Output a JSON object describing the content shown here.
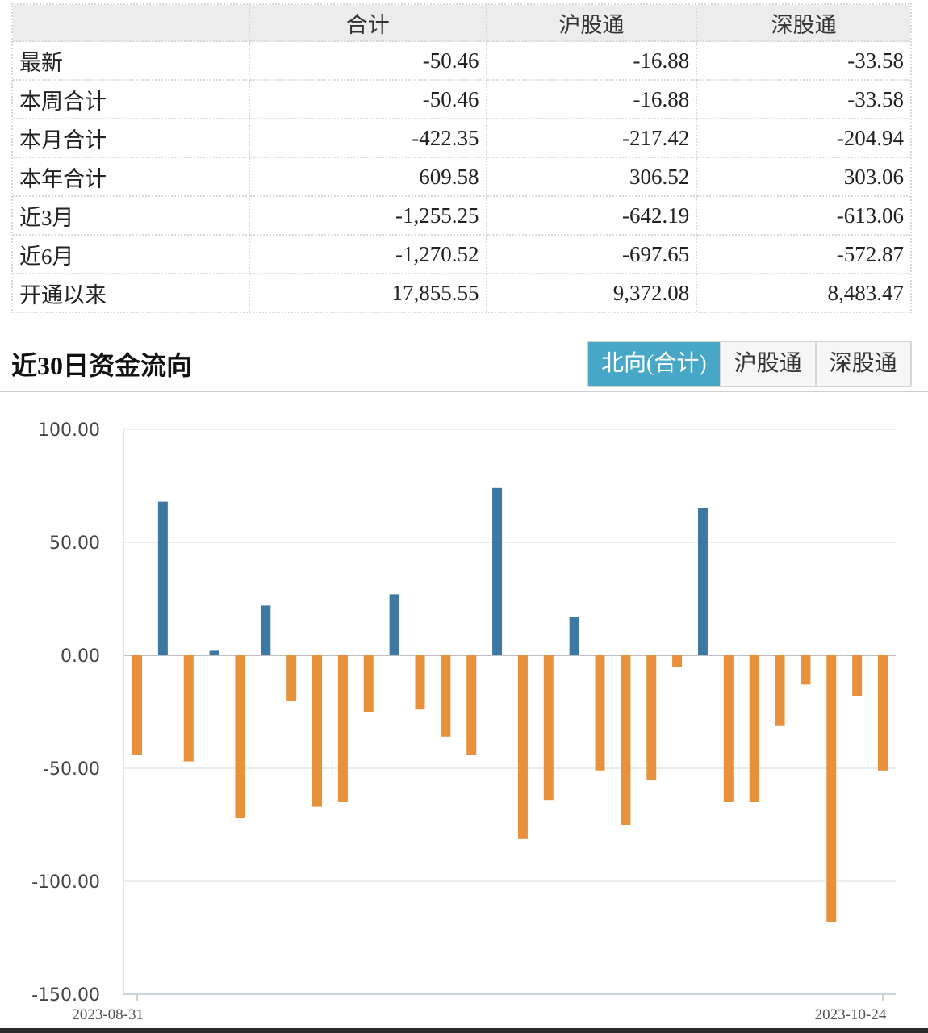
{
  "table": {
    "headers": [
      "",
      "合计",
      "沪股通",
      "深股通"
    ],
    "rows": [
      {
        "label": "最新",
        "total": "-50.46",
        "sh": "-16.88",
        "sz": "-33.58"
      },
      {
        "label": "本周合计",
        "total": "-50.46",
        "sh": "-16.88",
        "sz": "-33.58"
      },
      {
        "label": "本月合计",
        "total": "-422.35",
        "sh": "-217.42",
        "sz": "-204.94"
      },
      {
        "label": "本年合计",
        "total": "609.58",
        "sh": "306.52",
        "sz": "303.06"
      },
      {
        "label": "近3月",
        "total": "-1,255.25",
        "sh": "-642.19",
        "sz": "-613.06"
      },
      {
        "label": "近6月",
        "total": "-1,270.52",
        "sh": "-697.65",
        "sz": "-572.87"
      },
      {
        "label": "开通以来",
        "total": "17,855.55",
        "sh": "9,372.08",
        "sz": "8,483.47"
      }
    ]
  },
  "section": {
    "title": "近30日资金流向",
    "tabs": [
      {
        "label": "北向(合计)",
        "active": true
      },
      {
        "label": "沪股通",
        "active": false
      },
      {
        "label": "深股通",
        "active": false
      }
    ]
  },
  "colors": {
    "positive": "#3d78a3",
    "negative": "#e8913a",
    "tab_active": "#48a7c6"
  },
  "chart_data": {
    "type": "bar",
    "x_tick_labels": [
      "2023-08-31",
      "2023-10-24"
    ],
    "ylim": [
      -150,
      100
    ],
    "y_ticks": [
      "100.00",
      "50.00",
      "0.00",
      "-50.00",
      "-100.00",
      "-150.00"
    ],
    "y_tick_values": [
      100,
      50,
      0,
      -50,
      -100,
      -150
    ],
    "values": [
      -44,
      68,
      -47,
      2,
      -72,
      22,
      -20,
      -67,
      -65,
      -25,
      27,
      -24,
      -36,
      -44,
      74,
      -81,
      -64,
      17,
      -51,
      -75,
      -55,
      -5,
      65,
      -65,
      -65,
      -31,
      -13,
      -118,
      -18,
      -51
    ],
    "grid": true,
    "legend": "none"
  }
}
